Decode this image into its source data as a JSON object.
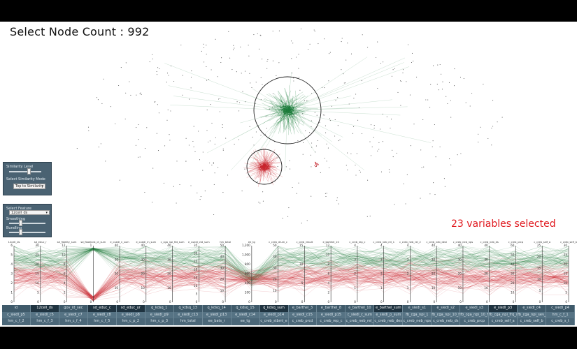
{
  "header": {
    "title": "Select Node Count : 992"
  },
  "similarity_panel": {
    "similarity_label": "Similarity Level",
    "similarity_level": 0.6,
    "mode_label": "Select Similarity Mode",
    "mode_value": "Top to Similarity"
  },
  "feature_panel": {
    "select_label": "Select Feature",
    "feature_value": "12cell_ds",
    "smoothing_label": "Smoothing",
    "smoothing_level": 0.3,
    "bundling_label": "Bundling",
    "bundling_level": 0.3
  },
  "status": {
    "variables_selected": "23 variables selected"
  },
  "colors": {
    "green": "#1e7d3c",
    "red": "#c8262e",
    "panel": "#4a6272"
  },
  "parallel_coords": {
    "axes": [
      {
        "label": "12cell_ds",
        "ticks": [
          "6",
          "5",
          "4",
          "3",
          "2",
          "1",
          "0"
        ]
      },
      {
        "label": "sd_educ_r",
        "ticks": [
          "30",
          "25",
          "20",
          "15",
          "10",
          "5",
          "0"
        ]
      },
      {
        "label": "sd_fidelity_sum",
        "ticks": [
          "12",
          "10",
          "8",
          "6",
          "4",
          "2",
          "0"
        ]
      },
      {
        "label": "sd_fbaekcst_ct_sum",
        "ticks": [
          "1",
          "0"
        ]
      },
      {
        "label": "e_cuedl_n_sum",
        "ticks": [
          "40",
          "30",
          "20",
          "10",
          "0"
        ]
      },
      {
        "label": "e_cuedl_rn_sum",
        "ticks": [
          "40",
          "30",
          "20",
          "10",
          "0"
        ]
      },
      {
        "label": "c_cga_npi_fbt_sum",
        "ticks": [
          "40",
          "30",
          "20",
          "10",
          "0"
        ]
      },
      {
        "label": "e_cuedl_ctd_sum",
        "ticks": [
          "35",
          "30",
          "25",
          "20",
          "15",
          "10",
          "5",
          "0"
        ]
      },
      {
        "label": "hm_total",
        "ticks": [
          "50",
          "40",
          "30",
          "20",
          "10",
          "0"
        ]
      },
      {
        "label": "ee_tg",
        "ticks": [
          "1,200",
          "1,000",
          "800",
          "600",
          "400",
          "200",
          "0"
        ]
      },
      {
        "label": "c_creb_drum_c",
        "ticks": [
          "50",
          "40",
          "30",
          "20",
          "10",
          "0"
        ]
      },
      {
        "label": "c_creb_result",
        "ticks": [
          "15",
          "10",
          "5",
          "0"
        ]
      },
      {
        "label": "e_barthel_10",
        "ticks": [
          "12",
          "10",
          "8",
          "6",
          "4",
          "2",
          "0"
        ]
      },
      {
        "label": "c_creb_rep_c",
        "ticks": [
          "4",
          "3",
          "2",
          "1",
          "0"
        ]
      },
      {
        "label": "c_creb_neb_rel_1",
        "ticks": [
          "4",
          "3",
          "2",
          "1",
          "0"
        ]
      },
      {
        "label": "c_creb_neb_rel_2",
        "ticks": [
          "4",
          "3",
          "2",
          "1",
          "0"
        ]
      },
      {
        "label": "c_creb_neb_desl",
        "ticks": [
          "40",
          "30",
          "20",
          "10",
          "0"
        ]
      },
      {
        "label": "c_creb_neb_nps",
        "ticks": [
          "40",
          "30",
          "20",
          "10",
          "0"
        ]
      },
      {
        "label": "c_creb_neb_ds",
        "ticks": [
          "40",
          "30",
          "20",
          "10",
          "0"
        ]
      },
      {
        "label": "c_creb_prcp",
        "ticks": [
          "60",
          "50",
          "40",
          "30",
          "20",
          "10",
          "0"
        ]
      },
      {
        "label": "c_creb_self_a",
        "ticks": [
          "25",
          "20",
          "15",
          "10",
          "5",
          "0"
        ]
      },
      {
        "label": "c_creb_self_b",
        "ticks": [
          "30",
          "25",
          "20",
          "15",
          "10",
          "5",
          "0"
        ]
      }
    ]
  },
  "variable_grid": {
    "rows": [
      [
        "id",
        "12cell_ds",
        "gov_id_sec",
        "sd_educ_c",
        "sd_educ_yr",
        "q_kdsq_1",
        "q_kdsq_13",
        "q_kdsq_14",
        "q_kdsq_15",
        "q_kdsq_sum",
        "e_barthel_3",
        "e_barthel_8",
        "e_barthel_10",
        "e_barthel_sum",
        "e_siedl_s1",
        "e_siedl_s2",
        "e_siedl_s3",
        "e_siedl_p3",
        "e_siedl_c4",
        "c_siedl_p4"
      ],
      [
        "c_siedl_p5",
        "e_siedl_c5",
        "e_siedl_c7",
        "e_siedl_c8",
        "e_siedl_p8",
        "e_siedl_p9",
        "e_siedl_c13",
        "e_siedl_p13",
        "e_siedl_c14",
        "e_siedl_p14",
        "e_siedl_c15",
        "e_siedl_p15",
        "c_siedl_c_sum",
        "e_siedl_p_sum",
        "fb_cga_npi_1",
        "fb_cga_npi_10_fr",
        "fb_cga_npi_10_fr",
        "fb_cga_npi_frq_sum",
        "fb_cga_npi_sev_sum",
        "hm_c_f_1"
      ],
      [
        "hm_c_f_2",
        "hm_c_f_3",
        "hm_c_f_4",
        "hm_c_f_5",
        "hm_c_p_2",
        "hm_c_p_3",
        "hm_total",
        "ee_bats_r",
        "ee_tg",
        "c_creb_stbml_e",
        "c_creb_prcd",
        "c_creb_rep_c",
        "c_creb_neb_rel_1",
        "c_creb_neb_desl",
        "c_creb_neb_nps",
        "c_creb_neb_ds",
        "c_creb_prcp",
        "c_creb_self_a",
        "c_creb_self_b",
        "c_creb_s_t"
      ]
    ],
    "selected": [
      "12cell_ds",
      "sd_educ_c",
      "sd_educ_yr",
      "q_kdsq_sum",
      "e_barthel_sum",
      "e_siedl_p3",
      "hm_total",
      "ee_tg"
    ]
  }
}
